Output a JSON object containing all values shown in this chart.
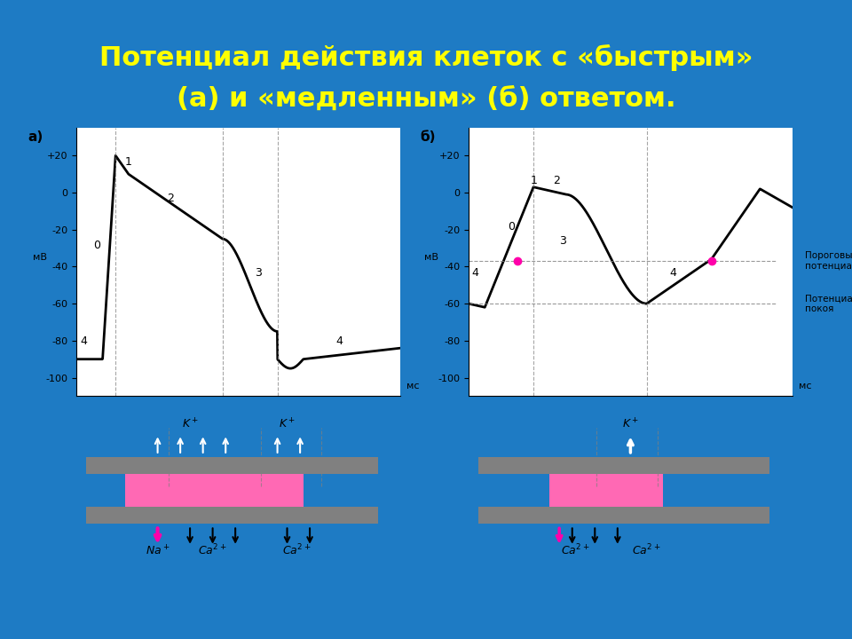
{
  "title_line1": "Потенциал действия клеток с «быстрым»",
  "title_line2": "(а) и «медленным» (б) ответом.",
  "title_color": "#FFFF00",
  "bg_color": "#1E7BC4",
  "panel_bg": "#F0F0F0",
  "label_a": "а)",
  "label_b": "б)",
  "ylabel_a": "мВ",
  "ylabel_b": "мВ",
  "xlabel_a": "мс",
  "xlabel_b": "мс",
  "yticks": [
    20,
    0,
    -20,
    -40,
    -60,
    -80,
    -100
  ],
  "ylim": [
    -110,
    35
  ],
  "threshold_b": -37,
  "resting_b": -60,
  "porог_label": "Пороговый\nпотенциал",
  "pokoy_label": "Потенциал\nпокоя",
  "ion_bar_gray": "#808080",
  "ion_bar_pink": "#FF69B4",
  "magenta": "#FF00AA"
}
